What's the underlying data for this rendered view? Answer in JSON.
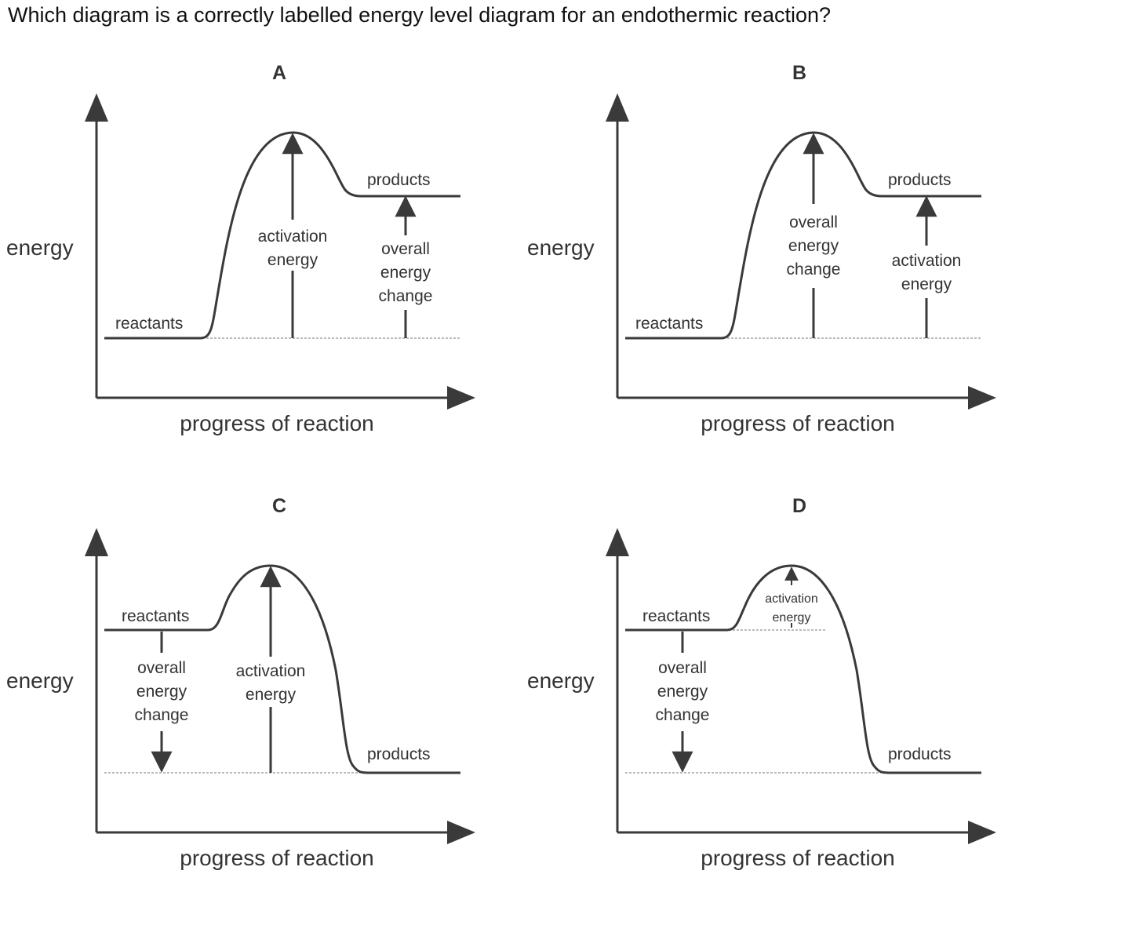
{
  "question": "Which diagram is a correctly labelled energy level diagram for an endothermic reaction?",
  "colors": {
    "line": "#3a3a3a",
    "text": "#333333"
  },
  "diagrams": [
    {
      "letter": "A",
      "y_axis": "energy",
      "x_axis": "progress of reaction",
      "reactants": "reactants",
      "products": "products",
      "activation": [
        "activation",
        "energy"
      ],
      "overall": [
        "overall",
        "energy",
        "change"
      ]
    },
    {
      "letter": "B",
      "y_axis": "energy",
      "x_axis": "progress of reaction",
      "reactants": "reactants",
      "products": "products",
      "overall": [
        "overall",
        "energy",
        "change"
      ],
      "activation": [
        "activation",
        "energy"
      ]
    },
    {
      "letter": "C",
      "y_axis": "energy",
      "x_axis": "progress of reaction",
      "reactants": "reactants",
      "products": "products",
      "overall": [
        "overall",
        "energy",
        "change"
      ],
      "activation": [
        "activation",
        "energy"
      ]
    },
    {
      "letter": "D",
      "y_axis": "energy",
      "x_axis": "progress of reaction",
      "reactants": "reactants",
      "products": "products",
      "overall": [
        "overall",
        "energy",
        "change"
      ],
      "activation": [
        "activation",
        "energy"
      ]
    }
  ]
}
